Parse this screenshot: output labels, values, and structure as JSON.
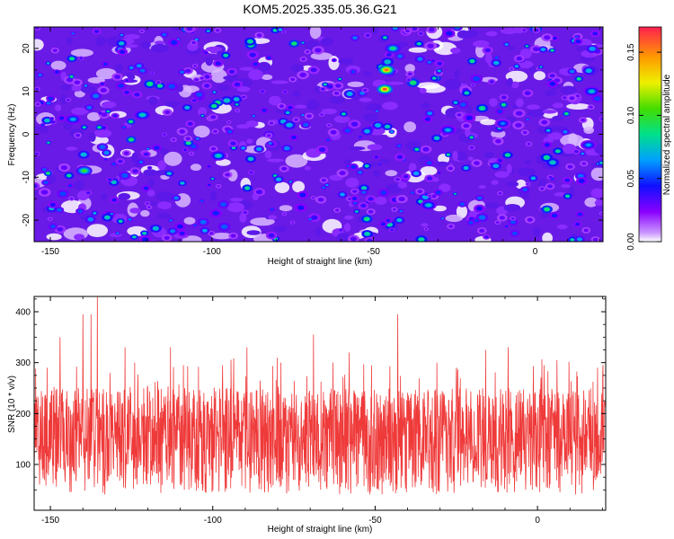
{
  "title": "KOM5.2025.335.05.36.G21",
  "chart_data": [
    {
      "type": "heatmap",
      "xlabel": "Height of straight line (km)",
      "ylabel": "Frequency (Hz)",
      "xlim": [
        -155,
        21
      ],
      "ylim": [
        -25,
        25
      ],
      "xticks": [
        -150,
        -100,
        -50,
        0
      ],
      "yticks": [
        -20,
        -10,
        0,
        10,
        20
      ],
      "colorbar": {
        "label": "Normalized spectral amplitude",
        "range": [
          0,
          0.17
        ],
        "ticks": [
          "0.00",
          "0.05",
          "0.10",
          "0.15"
        ],
        "tick_values": [
          0.0,
          0.05,
          0.1,
          0.15
        ]
      },
      "peaks": [
        {
          "x": -46.5,
          "y": 10.5,
          "value": 0.16
        },
        {
          "x": -46.0,
          "y": 15.0,
          "value": 0.155
        },
        {
          "x": -44.0,
          "y": 20.0,
          "value": 0.09
        },
        {
          "x": -139.5,
          "y": -8.5,
          "value": 0.1
        },
        {
          "x": -98.0,
          "y": -5.0,
          "value": 0.08
        },
        {
          "x": -121.5,
          "y": 4.5,
          "value": 0.08
        },
        {
          "x": -143.0,
          "y": 3.5,
          "value": 0.07
        },
        {
          "x": -33.0,
          "y": -16.5,
          "value": 0.075
        },
        {
          "x": -27.0,
          "y": 1.0,
          "value": 0.07
        },
        {
          "x": 17.5,
          "y": 10.0,
          "value": 0.075
        },
        {
          "x": 16.5,
          "y": -2.5,
          "value": 0.065
        },
        {
          "x": -10.0,
          "y": 2.5,
          "value": 0.06
        }
      ]
    },
    {
      "type": "line",
      "xlabel": "Height of straight line (km)",
      "ylabel": "SNR (10 * v/v)",
      "xlim": [
        -155,
        21
      ],
      "ylim": [
        10,
        430
      ],
      "xticks": [
        -150,
        -100,
        -50,
        0
      ],
      "yticks": [
        100,
        200,
        300,
        400
      ],
      "color": "#ef3a3a",
      "baseline_range": [
        40,
        250
      ],
      "spikes": [
        {
          "x": -135.5,
          "y": 430
        },
        {
          "x": -140.0,
          "y": 395
        },
        {
          "x": -137.5,
          "y": 395
        },
        {
          "x": -147.0,
          "y": 350
        },
        {
          "x": -69.0,
          "y": 355
        },
        {
          "x": -43.0,
          "y": 395
        },
        {
          "x": -89.5,
          "y": 330
        },
        {
          "x": -127.0,
          "y": 330
        },
        {
          "x": -113.0,
          "y": 330
        },
        {
          "x": -58.0,
          "y": 320
        },
        {
          "x": -16.0,
          "y": 325
        },
        {
          "x": -9.0,
          "y": 330
        },
        {
          "x": -31.0,
          "y": 300
        },
        {
          "x": -79.0,
          "y": 300
        },
        {
          "x": 6.0,
          "y": 305
        },
        {
          "x": -109.0,
          "y": 295
        },
        {
          "x": -124.0,
          "y": 300
        },
        {
          "x": -97.0,
          "y": 295
        },
        {
          "x": -63.0,
          "y": 300
        },
        {
          "x": -25.0,
          "y": 290
        },
        {
          "x": 18.5,
          "y": 290
        },
        {
          "x": -151.0,
          "y": 290
        }
      ]
    }
  ]
}
